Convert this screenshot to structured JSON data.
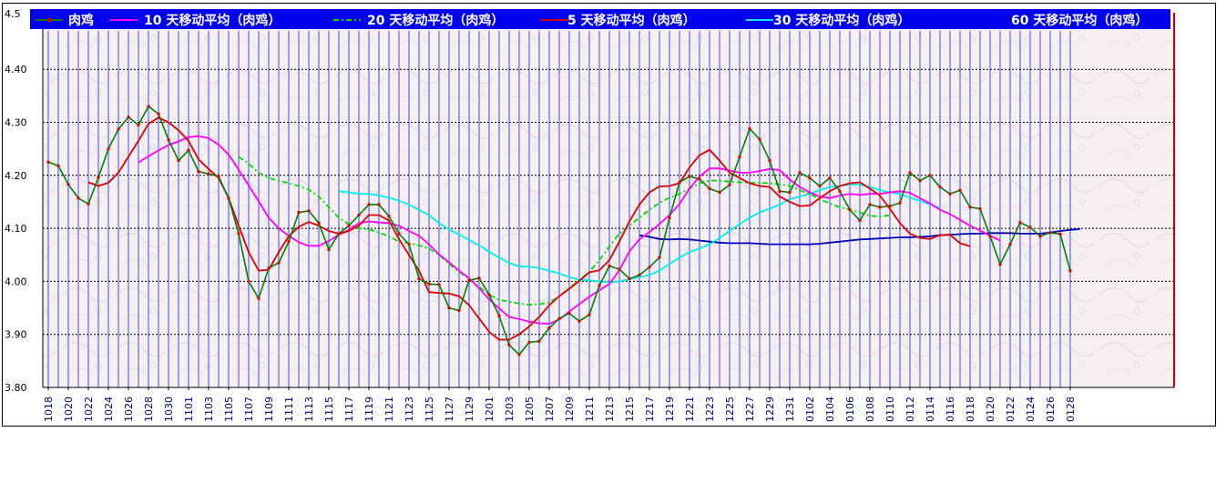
{
  "chart_data": {
    "type": "line",
    "y_ticks": [
      "4.5",
      "4.40",
      "4.30",
      "4.20",
      "4.10",
      "4.00",
      "3.90",
      "3.80"
    ],
    "ylim": [
      3.8,
      4.5
    ],
    "grid": "horizontal dotted",
    "legend_position": "top",
    "x_labels": [
      "1018",
      "1020",
      "1022",
      "1024",
      "1026",
      "1028",
      "1030",
      "1101",
      "1103",
      "1105",
      "1107",
      "1109",
      "1111",
      "1113",
      "1115",
      "1117",
      "1119",
      "1121",
      "1123",
      "1125",
      "1127",
      "1129",
      "1201",
      "1203",
      "1205",
      "1207",
      "1209",
      "1211",
      "1213",
      "1215",
      "1217",
      "1219",
      "1221",
      "1223",
      "1225",
      "1227",
      "1229",
      "1231",
      "0102",
      "0104",
      "0106",
      "0108",
      "0110",
      "0112",
      "0114",
      "0116",
      "0118",
      "0120",
      "0122",
      "0124",
      "0126",
      "0128"
    ],
    "series": [
      {
        "name": "肉鸡",
        "color": "#008000",
        "start": 0,
        "values": [
          4.225,
          4.218,
          4.183,
          4.157,
          4.146,
          4.196,
          4.25,
          4.287,
          4.31,
          4.295,
          4.33,
          4.316,
          4.267,
          4.228,
          4.247,
          4.207,
          4.203,
          4.198,
          4.157,
          4.09,
          4.0,
          3.968,
          4.025,
          4.035,
          4.075,
          4.13,
          4.133,
          4.11,
          4.06,
          4.09,
          4.105,
          4.125,
          4.145,
          4.145,
          4.123,
          4.09,
          4.07,
          4.005,
          3.995,
          3.994,
          3.95,
          3.945,
          4.002,
          4.006,
          3.975,
          3.935,
          3.88,
          3.862,
          3.885,
          3.887,
          3.912,
          3.93,
          3.94,
          3.925,
          3.937,
          3.992,
          4.029,
          4.023,
          4.005,
          4.012,
          4.027,
          4.045,
          4.12,
          4.187,
          4.198,
          4.193,
          4.175,
          4.168,
          4.182,
          4.235,
          4.288,
          4.268,
          4.228,
          4.17,
          4.168,
          4.205,
          4.195,
          4.18,
          4.195,
          4.17,
          4.135,
          4.115,
          4.145,
          4.14,
          4.142,
          4.148,
          4.205,
          4.19,
          4.2,
          4.178,
          4.165,
          4.172,
          4.14,
          4.137,
          4.085,
          4.032,
          4.07,
          4.111,
          4.102,
          4.085,
          4.092,
          4.089,
          4.02
        ]
      },
      {
        "name": "10 天移动平均（肉鸡）",
        "color": "#ff00ff",
        "start": 9,
        "values": [
          4.224,
          4.236,
          4.247,
          4.257,
          4.264,
          4.272,
          4.274,
          4.27,
          4.258,
          4.239,
          4.211,
          4.181,
          4.151,
          4.12,
          4.1,
          4.086,
          4.074,
          4.067,
          4.067,
          4.076,
          4.088,
          4.097,
          4.11,
          4.113,
          4.111,
          4.11,
          4.105,
          4.095,
          4.086,
          4.07,
          4.051,
          4.036,
          4.02,
          4.006,
          3.987,
          3.966,
          3.949,
          3.933,
          3.929,
          3.924,
          3.921,
          3.92,
          3.928,
          3.943,
          3.957,
          3.971,
          3.983,
          3.995,
          4.021,
          4.057,
          4.079,
          4.093,
          4.108,
          4.125,
          4.146,
          4.175,
          4.198,
          4.213,
          4.213,
          4.209,
          4.205,
          4.205,
          4.208,
          4.212,
          4.21,
          4.192,
          4.178,
          4.168,
          4.16,
          4.157,
          4.162,
          4.165,
          4.163,
          4.165,
          4.165,
          4.168,
          4.17,
          4.167,
          4.157,
          4.147,
          4.135,
          4.127,
          4.116,
          4.105,
          4.096,
          4.086,
          4.077
        ]
      },
      {
        "name": "20 天移动平均（肉鸡）",
        "color": "#00dd00",
        "start": 19,
        "values": [
          4.235,
          4.222,
          4.205,
          4.195,
          4.19,
          4.185,
          4.18,
          4.173,
          4.16,
          4.14,
          4.12,
          4.108,
          4.1,
          4.098,
          4.092,
          4.085,
          4.075,
          4.072,
          4.068,
          4.062,
          4.05,
          4.033,
          4.018,
          4.005,
          3.99,
          3.975,
          3.965,
          3.962,
          3.958,
          3.956,
          3.957,
          3.96,
          3.972,
          3.988,
          4.002,
          4.018,
          4.04,
          4.066,
          4.09,
          4.105,
          4.12,
          4.135,
          4.148,
          4.158,
          4.165,
          4.175,
          4.185,
          4.19,
          4.19,
          4.188,
          4.187,
          4.186,
          4.186,
          4.185,
          4.183,
          4.18,
          4.172,
          4.165,
          4.155,
          4.147,
          4.14,
          4.135,
          4.13,
          4.124,
          4.122,
          4.125
        ]
      },
      {
        "name": "5 天移动平均（肉鸡）",
        "color": "#dd0000",
        "start": 4,
        "values": [
          4.187,
          4.18,
          4.186,
          4.205,
          4.235,
          4.265,
          4.297,
          4.309,
          4.3,
          4.285,
          4.265,
          4.23,
          4.212,
          4.195,
          4.157,
          4.105,
          4.055,
          4.02,
          4.022,
          4.055,
          4.085,
          4.103,
          4.112,
          4.105,
          4.095,
          4.09,
          4.095,
          4.105,
          4.125,
          4.125,
          4.115,
          4.08,
          4.05,
          4.02,
          3.98,
          3.978,
          3.977,
          3.972,
          3.955,
          3.93,
          3.905,
          3.89,
          3.89,
          3.9,
          3.915,
          3.933,
          3.955,
          3.972,
          3.986,
          4.001,
          4.017,
          4.021,
          4.04,
          4.075,
          4.113,
          4.145,
          4.168,
          4.179,
          4.18,
          4.185,
          4.215,
          4.238,
          4.248,
          4.228,
          4.205,
          4.195,
          4.185,
          4.18,
          4.178,
          4.16,
          4.15,
          4.142,
          4.143,
          4.157,
          4.17,
          4.18,
          4.185,
          4.187,
          4.175,
          4.162,
          4.137,
          4.11,
          4.09,
          4.082,
          4.08,
          4.087,
          4.088,
          4.072,
          4.066
        ]
      },
      {
        "name": "30 天移动平均（肉鸡）",
        "color": "#00eeee",
        "start": 29,
        "values": [
          4.17,
          4.168,
          4.165,
          4.165,
          4.162,
          4.158,
          4.152,
          4.145,
          4.135,
          4.125,
          4.11,
          4.098,
          4.088,
          4.078,
          4.068,
          4.056,
          4.045,
          4.035,
          4.028,
          4.028,
          4.025,
          4.02,
          4.015,
          4.008,
          4.003,
          4.002,
          4.0,
          3.998,
          4.0,
          4.004,
          4.008,
          4.012,
          4.02,
          4.033,
          4.045,
          4.055,
          4.062,
          4.07,
          4.082,
          4.095,
          4.108,
          4.12,
          4.13,
          4.137,
          4.145,
          4.155,
          4.16,
          4.165,
          4.172,
          4.178,
          4.18,
          4.183,
          4.183,
          4.178,
          4.172,
          4.168,
          4.165,
          4.158,
          4.152,
          4.145,
          4.138
        ]
      },
      {
        "name": "60 天移动平均（肉鸡）",
        "color": "#0000bb",
        "start": 59,
        "values": [
          4.087,
          4.084,
          4.08,
          4.079,
          4.08,
          4.079,
          4.077,
          4.075,
          4.073,
          4.072,
          4.072,
          4.072,
          4.071,
          4.07,
          4.07,
          4.07,
          4.07,
          4.07,
          4.071,
          4.073,
          4.075,
          4.077,
          4.079,
          4.08,
          4.081,
          4.082,
          4.083,
          4.083,
          4.084,
          4.085,
          4.087,
          4.088,
          4.089,
          4.09,
          4.09,
          4.091,
          4.091,
          4.091,
          4.09,
          4.09,
          4.09,
          4.092,
          4.095,
          4.097,
          4.099
        ]
      }
    ]
  }
}
